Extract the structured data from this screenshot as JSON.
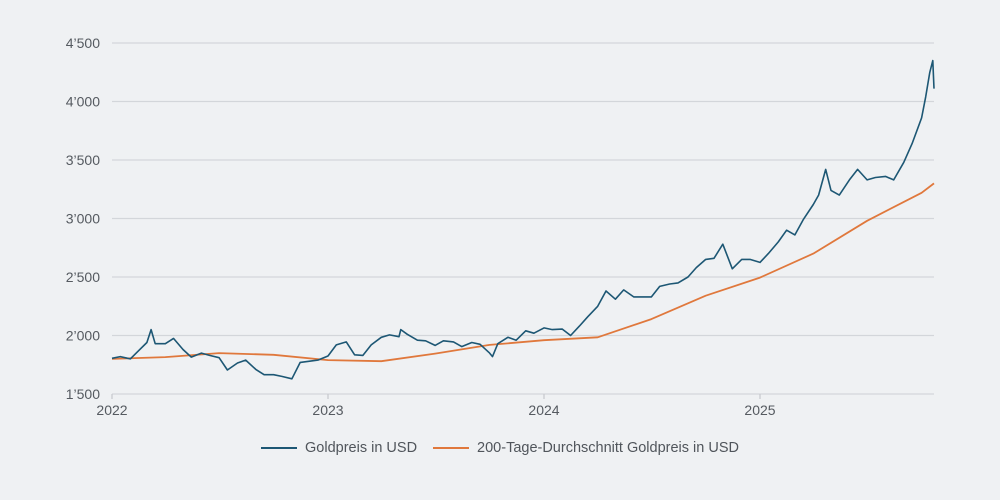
{
  "chart_data": {
    "type": "line",
    "title": "",
    "xlabel": "",
    "ylabel": "",
    "ylim": [
      1500,
      4500
    ],
    "xlim": [
      "2022-01-01",
      "2025-10-22"
    ],
    "yticks": [
      1500,
      2000,
      2500,
      3000,
      3500,
      4000,
      4500
    ],
    "ytick_labels": [
      "1’500",
      "2’000",
      "2’500",
      "3’000",
      "3’500",
      "4’000",
      "4’500"
    ],
    "xticks": [
      "2022-01-01",
      "2023-01-01",
      "2024-01-01",
      "2025-01-01"
    ],
    "xtick_labels": [
      "2022",
      "2023",
      "2024",
      "2025"
    ],
    "grid": "horizontal",
    "legend_position": "bottom",
    "series": [
      {
        "name": "Goldpreis in USD",
        "color": "#1d5774",
        "points": [
          [
            "2022-01-01",
            1805
          ],
          [
            "2022-01-15",
            1820
          ],
          [
            "2022-02-01",
            1800
          ],
          [
            "2022-02-15",
            1870
          ],
          [
            "2022-03-01",
            1940
          ],
          [
            "2022-03-08",
            2050
          ],
          [
            "2022-03-15",
            1930
          ],
          [
            "2022-04-01",
            1930
          ],
          [
            "2022-04-15",
            1975
          ],
          [
            "2022-05-01",
            1880
          ],
          [
            "2022-05-15",
            1815
          ],
          [
            "2022-06-01",
            1850
          ],
          [
            "2022-06-15",
            1830
          ],
          [
            "2022-07-01",
            1810
          ],
          [
            "2022-07-15",
            1705
          ],
          [
            "2022-08-01",
            1765
          ],
          [
            "2022-08-15",
            1790
          ],
          [
            "2022-09-01",
            1710
          ],
          [
            "2022-09-15",
            1665
          ],
          [
            "2022-10-01",
            1665
          ],
          [
            "2022-10-15",
            1650
          ],
          [
            "2022-11-01",
            1630
          ],
          [
            "2022-11-15",
            1770
          ],
          [
            "2022-12-01",
            1780
          ],
          [
            "2022-12-15",
            1790
          ],
          [
            "2023-01-01",
            1825
          ],
          [
            "2023-01-15",
            1920
          ],
          [
            "2023-02-01",
            1945
          ],
          [
            "2023-02-15",
            1835
          ],
          [
            "2023-03-01",
            1830
          ],
          [
            "2023-03-15",
            1920
          ],
          [
            "2023-04-01",
            1985
          ],
          [
            "2023-04-15",
            2005
          ],
          [
            "2023-05-01",
            1990
          ],
          [
            "2023-05-04",
            2050
          ],
          [
            "2023-05-15",
            2010
          ],
          [
            "2023-06-01",
            1960
          ],
          [
            "2023-06-15",
            1955
          ],
          [
            "2023-07-01",
            1915
          ],
          [
            "2023-07-15",
            1955
          ],
          [
            "2023-08-01",
            1945
          ],
          [
            "2023-08-15",
            1905
          ],
          [
            "2023-09-01",
            1940
          ],
          [
            "2023-09-15",
            1925
          ],
          [
            "2023-10-01",
            1850
          ],
          [
            "2023-10-06",
            1820
          ],
          [
            "2023-10-15",
            1930
          ],
          [
            "2023-11-01",
            1985
          ],
          [
            "2023-11-15",
            1960
          ],
          [
            "2023-12-01",
            2040
          ],
          [
            "2023-12-15",
            2020
          ],
          [
            "2024-01-01",
            2065
          ],
          [
            "2024-01-15",
            2050
          ],
          [
            "2024-02-01",
            2055
          ],
          [
            "2024-02-15",
            2000
          ],
          [
            "2024-03-01",
            2080
          ],
          [
            "2024-03-15",
            2160
          ],
          [
            "2024-04-01",
            2250
          ],
          [
            "2024-04-15",
            2380
          ],
          [
            "2024-05-01",
            2310
          ],
          [
            "2024-05-15",
            2390
          ],
          [
            "2024-06-01",
            2330
          ],
          [
            "2024-06-15",
            2330
          ],
          [
            "2024-07-01",
            2330
          ],
          [
            "2024-07-15",
            2420
          ],
          [
            "2024-08-01",
            2440
          ],
          [
            "2024-08-15",
            2450
          ],
          [
            "2024-09-01",
            2500
          ],
          [
            "2024-09-15",
            2580
          ],
          [
            "2024-10-01",
            2650
          ],
          [
            "2024-10-15",
            2660
          ],
          [
            "2024-10-30",
            2780
          ],
          [
            "2024-11-15",
            2570
          ],
          [
            "2024-12-01",
            2650
          ],
          [
            "2024-12-15",
            2650
          ],
          [
            "2025-01-01",
            2625
          ],
          [
            "2025-01-15",
            2700
          ],
          [
            "2025-02-01",
            2800
          ],
          [
            "2025-02-15",
            2900
          ],
          [
            "2025-03-01",
            2860
          ],
          [
            "2025-03-15",
            2990
          ],
          [
            "2025-04-01",
            3120
          ],
          [
            "2025-04-10",
            3200
          ],
          [
            "2025-04-22",
            3420
          ],
          [
            "2025-05-01",
            3240
          ],
          [
            "2025-05-15",
            3200
          ],
          [
            "2025-06-01",
            3330
          ],
          [
            "2025-06-15",
            3420
          ],
          [
            "2025-07-01",
            3330
          ],
          [
            "2025-07-15",
            3350
          ],
          [
            "2025-08-01",
            3360
          ],
          [
            "2025-08-15",
            3330
          ],
          [
            "2025-09-01",
            3480
          ],
          [
            "2025-09-15",
            3640
          ],
          [
            "2025-10-01",
            3860
          ],
          [
            "2025-10-08",
            4040
          ],
          [
            "2025-10-15",
            4250
          ],
          [
            "2025-10-20",
            4350
          ],
          [
            "2025-10-22",
            4110
          ]
        ]
      },
      {
        "name": "200-Tage-Durchschnitt Goldpreis in USD",
        "color": "#e0783c",
        "points": [
          [
            "2022-01-01",
            1800
          ],
          [
            "2022-04-01",
            1815
          ],
          [
            "2022-07-01",
            1850
          ],
          [
            "2022-10-01",
            1835
          ],
          [
            "2023-01-01",
            1790
          ],
          [
            "2023-04-01",
            1780
          ],
          [
            "2023-07-01",
            1845
          ],
          [
            "2023-10-01",
            1920
          ],
          [
            "2024-01-01",
            1960
          ],
          [
            "2024-04-01",
            1985
          ],
          [
            "2024-07-01",
            2140
          ],
          [
            "2024-10-01",
            2340
          ],
          [
            "2025-01-01",
            2495
          ],
          [
            "2025-04-01",
            2700
          ],
          [
            "2025-07-01",
            2980
          ],
          [
            "2025-10-01",
            3220
          ],
          [
            "2025-10-22",
            3300
          ]
        ]
      }
    ]
  }
}
